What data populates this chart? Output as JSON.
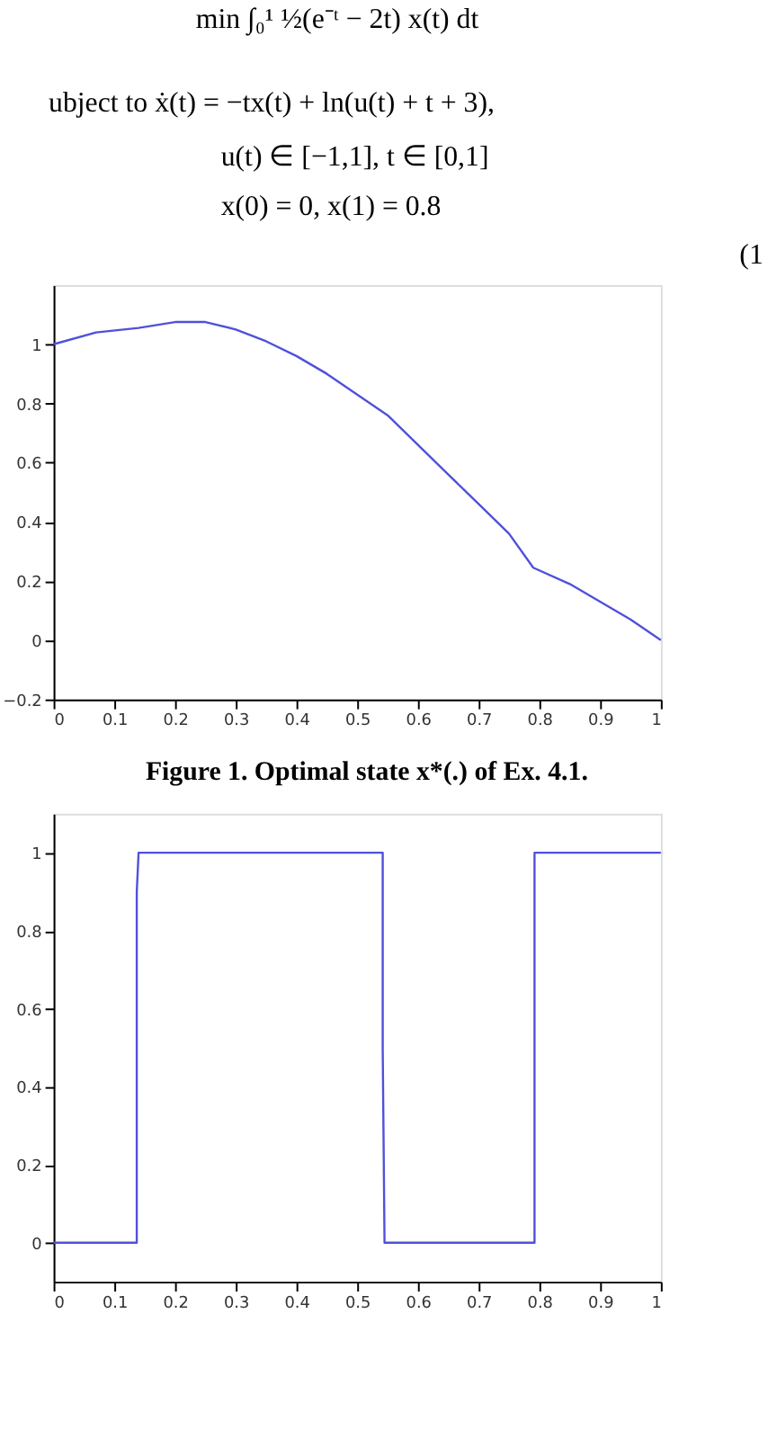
{
  "chart_data": [
    {
      "type": "line",
      "annotations": [
        "min ∫₀¹ ½(e⁻ᵗ − 2t) x(t) dt",
        "ubject to     ẋ(t) = −tx(t) + ln(u(t) + t + 3),",
        "u(t) ∈ [−1,1],   t ∈ [0,1]",
        "x(0) = 0,  x(1) = 0.8",
        "(1",
        "Figure 1. Optimal state  x*(.) of Ex. 4.1."
      ],
      "x": [
        0,
        0.07,
        0.14,
        0.2,
        0.25,
        0.3,
        0.35,
        0.4,
        0.45,
        0.5,
        0.55,
        0.6,
        0.65,
        0.7,
        0.75,
        0.79,
        0.85,
        0.9,
        0.95,
        1.0
      ],
      "series": [
        {
          "color": "#5050dc",
          "values": [
            1.0,
            1.04,
            1.055,
            1.075,
            1.075,
            1.05,
            1.01,
            0.96,
            0.9,
            0.83,
            0.76,
            0.66,
            0.56,
            0.46,
            0.36,
            0.245,
            0.19,
            0.13,
            0.07,
            0.0
          ]
        }
      ],
      "xlim": [
        0,
        1
      ],
      "xticks": [
        0,
        0.1,
        0.2,
        0.3,
        0.4,
        0.5,
        0.6,
        0.7,
        0.8,
        0.9,
        1
      ],
      "ylim": [
        -0.2,
        1.2
      ],
      "yticks": [
        -0.2,
        0,
        0.2,
        0.4,
        0.6,
        0.8,
        1
      ],
      "grid": false,
      "marker": "none",
      "line_style": "solid"
    },
    {
      "type": "line",
      "x": [
        0,
        0.137,
        0.137,
        0.14,
        0.542,
        0.542,
        0.545,
        0.792,
        0.792,
        1
      ],
      "series": [
        {
          "color": "#5050dc",
          "values": [
            0,
            0,
            0.9,
            1,
            1,
            0.5,
            0,
            0,
            1,
            1
          ]
        }
      ],
      "xlim": [
        0,
        1
      ],
      "xticks": [
        0,
        0.1,
        0.2,
        0.3,
        0.4,
        0.5,
        0.6,
        0.7,
        0.8,
        0.9,
        1
      ],
      "ylim": [
        -0.1,
        1.1
      ],
      "yticks": [
        0,
        0.2,
        0.4,
        0.6,
        0.8,
        1
      ],
      "grid": false,
      "marker": "none",
      "line_style": "solid"
    }
  ]
}
